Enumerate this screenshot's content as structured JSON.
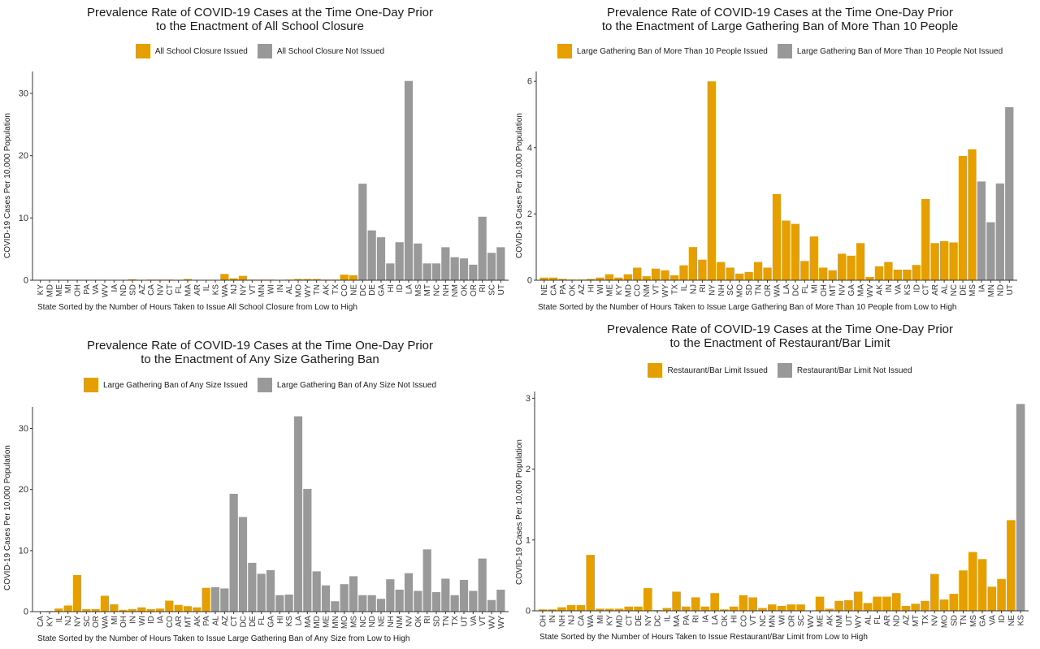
{
  "colors": {
    "issued": "#E69F00",
    "not_issued": "#999999"
  },
  "chart_data": [
    {
      "type": "bar",
      "title_line1": "Prevalence Rate of COVID-19 Cases at the Time One-Day Prior",
      "title_line2": "to the Enactment of All School Closure",
      "xlabel": "State Sorted by the Number of Hours Taken to Issue All School Closure from Low to High",
      "ylabel": "COVID-19 Cases Per 10,000 Population",
      "ylim": [
        0,
        33
      ],
      "yticks": [
        "0",
        "10",
        "20",
        "30"
      ],
      "legend_position": "top",
      "series_names": [
        "All School Closure Issued",
        "All School Closure Not Issued"
      ],
      "categories": [
        "KY",
        "MD",
        "ME",
        "MI",
        "OH",
        "PA",
        "VA",
        "WV",
        "IA",
        "ND",
        "SD",
        "AZ",
        "CA",
        "NV",
        "CT",
        "FL",
        "MA",
        "AR",
        "IL",
        "KS",
        "WA",
        "NJ",
        "NY",
        "VT",
        "MN",
        "WI",
        "IN",
        "AL",
        "MO",
        "WY",
        "TN",
        "AK",
        "TX",
        "CO",
        "NE",
        "DC",
        "DE",
        "GA",
        "HI",
        "ID",
        "LA",
        "MS",
        "MT",
        "NC",
        "NH",
        "NM",
        "OK",
        "OR",
        "RI",
        "SC",
        "UT"
      ],
      "values": [
        0.02,
        0.02,
        0.03,
        0.05,
        0.05,
        0.05,
        0.05,
        0.02,
        0.03,
        0.05,
        0.15,
        0.05,
        0.1,
        0.1,
        0.1,
        0.05,
        0.2,
        0.05,
        0.05,
        0.05,
        1.0,
        0.3,
        0.7,
        0.1,
        0.1,
        0.1,
        0.05,
        0.1,
        0.2,
        0.2,
        0.2,
        0.1,
        0.1,
        0.9,
        0.8,
        15.5,
        8.0,
        6.9,
        2.7,
        6.1,
        32.0,
        5.9,
        2.7,
        2.7,
        5.3,
        3.7,
        3.5,
        2.5,
        10.2,
        4.4,
        5.3
      ],
      "issued": [
        true,
        true,
        true,
        true,
        true,
        true,
        true,
        true,
        true,
        true,
        true,
        true,
        true,
        true,
        true,
        true,
        true,
        true,
        true,
        true,
        true,
        true,
        true,
        true,
        true,
        true,
        true,
        true,
        true,
        true,
        true,
        true,
        true,
        true,
        true,
        false,
        false,
        false,
        false,
        false,
        false,
        false,
        false,
        false,
        false,
        false,
        false,
        false,
        false,
        false,
        false
      ]
    },
    {
      "type": "bar",
      "title_line1": "Prevalence Rate of COVID-19 Cases at the Time One-Day Prior",
      "title_line2": "to the Enactment of Large Gathering Ban of More Than 10 People",
      "xlabel": "State Sorted by the Number of Hours Taken to Issue Large Gathering Ban of More Than 10 People from Low to High",
      "ylabel": "COVID-19 Cases Per 10,000 Population",
      "ylim": [
        0,
        6.2
      ],
      "yticks": [
        "0",
        "2",
        "4",
        "6"
      ],
      "legend_position": "top",
      "series_names": [
        "Large Gathering Ban of More Than 10 People Issued",
        "Large Gathering Ban of More Than 10 People Not Issued"
      ],
      "categories": [
        "NE",
        "CA",
        "PA",
        "OK",
        "AZ",
        "HI",
        "WI",
        "ME",
        "KY",
        "MD",
        "CO",
        "NM",
        "VT",
        "WY",
        "TX",
        "IL",
        "NJ",
        "RI",
        "NY",
        "NH",
        "SC",
        "MO",
        "SD",
        "TN",
        "OR",
        "WA",
        "LA",
        "DC",
        "FL",
        "MI",
        "OH",
        "MT",
        "NV",
        "GA",
        "MA",
        "WV",
        "AK",
        "IN",
        "VA",
        "KS",
        "ID",
        "CT",
        "AR",
        "AL",
        "NC",
        "DE",
        "MS",
        "IA",
        "MN",
        "ND",
        "UT"
      ],
      "values": [
        0.08,
        0.08,
        0.04,
        0.02,
        0.02,
        0.04,
        0.08,
        0.18,
        0.08,
        0.18,
        0.38,
        0.12,
        0.35,
        0.3,
        0.15,
        0.45,
        1.0,
        0.62,
        6.0,
        0.55,
        0.38,
        0.2,
        0.25,
        0.55,
        0.38,
        2.6,
        1.8,
        1.7,
        0.58,
        1.32,
        0.38,
        0.3,
        0.8,
        0.74,
        1.12,
        0.1,
        0.42,
        0.55,
        0.32,
        0.32,
        0.46,
        2.45,
        1.12,
        1.18,
        1.14,
        3.75,
        3.95,
        2.98,
        1.75,
        2.92,
        5.22
      ],
      "issued": [
        true,
        true,
        true,
        true,
        true,
        true,
        true,
        true,
        true,
        true,
        true,
        true,
        true,
        true,
        true,
        true,
        true,
        true,
        true,
        true,
        true,
        true,
        true,
        true,
        true,
        true,
        true,
        true,
        true,
        true,
        true,
        true,
        true,
        true,
        true,
        true,
        true,
        true,
        true,
        true,
        true,
        true,
        true,
        true,
        true,
        true,
        true,
        false,
        false,
        false,
        false
      ]
    },
    {
      "type": "bar",
      "title_line1": "Prevalence Rate of COVID-19 Cases at the Time One-Day Prior",
      "title_line2": "to the Enactment of Any Size Gathering Ban",
      "xlabel": "State Sorted by the Number of Hours Taken to Issue Large Gathering Ban of Any Size from Low to High",
      "ylabel": "COVID-19 Cases Per 10,000 Population",
      "ylim": [
        0,
        33
      ],
      "yticks": [
        "0",
        "10",
        "20",
        "30"
      ],
      "legend_position": "top",
      "series_names": [
        "Large Gathering Ban of Any Size Issued",
        "Large Gathering Ban of Any Size Not Issued"
      ],
      "categories": [
        "CA",
        "KY",
        "IL",
        "NJ",
        "NY",
        "SC",
        "OR",
        "WA",
        "MI",
        "OH",
        "IN",
        "WI",
        "ID",
        "IA",
        "CO",
        "AR",
        "MT",
        "AK",
        "PA",
        "AL",
        "AZ",
        "CT",
        "DC",
        "DE",
        "FL",
        "GA",
        "HI",
        "KS",
        "LA",
        "MA",
        "MD",
        "ME",
        "MN",
        "MO",
        "MS",
        "NC",
        "ND",
        "NE",
        "NH",
        "NM",
        "NV",
        "OK",
        "RI",
        "SD",
        "TN",
        "TX",
        "UT",
        "VA",
        "VT",
        "WV",
        "WY"
      ],
      "values": [
        0.05,
        0.1,
        0.5,
        1.0,
        6.0,
        0.4,
        0.4,
        2.6,
        1.2,
        0.3,
        0.4,
        0.7,
        0.4,
        0.5,
        1.8,
        1.1,
        0.9,
        0.7,
        3.9,
        4.0,
        3.8,
        19.3,
        15.5,
        8.0,
        6.2,
        6.8,
        2.7,
        2.8,
        32.0,
        20.1,
        6.6,
        4.3,
        1.7,
        4.5,
        5.8,
        2.7,
        2.7,
        2.1,
        5.3,
        3.6,
        6.3,
        3.4,
        10.2,
        3.2,
        5.4,
        2.7,
        5.2,
        3.4,
        8.7,
        1.9,
        3.6
      ],
      "issued": [
        true,
        true,
        true,
        true,
        true,
        true,
        true,
        true,
        true,
        true,
        true,
        true,
        true,
        true,
        true,
        true,
        true,
        true,
        true,
        false,
        false,
        false,
        false,
        false,
        false,
        false,
        false,
        false,
        false,
        false,
        false,
        false,
        false,
        false,
        false,
        false,
        false,
        false,
        false,
        false,
        false,
        false,
        false,
        false,
        false,
        false,
        false,
        false,
        false,
        false,
        false
      ]
    },
    {
      "type": "bar",
      "title_line1": "Prevalence Rate of COVID-19 Cases at the Time One-Day Prior",
      "title_line2": "to the Enactment of Restaurant/Bar Limit",
      "xlabel": "State Sorted by the Number of Hours Taken to Issue Restaurant/Bar Limit from Low to High",
      "ylabel": "COVID-19 Cases Per 10,000 Population",
      "ylim": [
        0,
        3.05
      ],
      "yticks": [
        "0",
        "1",
        "2",
        "3"
      ],
      "legend_position": "top",
      "series_names": [
        "Restaurant/Bar Limit Issued",
        "Restaurant/Bar Limit Not Issued"
      ],
      "categories": [
        "OH",
        "IN",
        "NH",
        "NJ",
        "CA",
        "WA",
        "MI",
        "KY",
        "MD",
        "CT",
        "DE",
        "NY",
        "DC",
        "IL",
        "MA",
        "PA",
        "RI",
        "IA",
        "LA",
        "OK",
        "HI",
        "CO",
        "VT",
        "NC",
        "MN",
        "WI",
        "OR",
        "SC",
        "WV",
        "ME",
        "AK",
        "NM",
        "UT",
        "WY",
        "AL",
        "FL",
        "AR",
        "ND",
        "AZ",
        "MT",
        "TX",
        "NV",
        "MO",
        "SD",
        "TN",
        "MS",
        "GA",
        "VA",
        "ID",
        "NE",
        "KS"
      ],
      "values": [
        0.02,
        0.02,
        0.05,
        0.08,
        0.08,
        0.79,
        0.03,
        0.03,
        0.03,
        0.06,
        0.06,
        0.32,
        0.01,
        0.04,
        0.27,
        0.06,
        0.19,
        0.06,
        0.25,
        0.02,
        0.06,
        0.22,
        0.19,
        0.04,
        0.09,
        0.07,
        0.09,
        0.09,
        0.0,
        0.2,
        0.03,
        0.14,
        0.15,
        0.27,
        0.11,
        0.2,
        0.2,
        0.25,
        0.07,
        0.1,
        0.14,
        0.52,
        0.16,
        0.24,
        0.57,
        0.83,
        0.73,
        0.34,
        0.45,
        1.28,
        2.92
      ],
      "issued": [
        true,
        true,
        true,
        true,
        true,
        true,
        true,
        true,
        true,
        true,
        true,
        true,
        true,
        true,
        true,
        true,
        true,
        true,
        true,
        true,
        true,
        true,
        true,
        true,
        true,
        true,
        true,
        true,
        true,
        true,
        true,
        true,
        true,
        true,
        true,
        true,
        true,
        true,
        true,
        true,
        true,
        true,
        true,
        true,
        true,
        true,
        true,
        true,
        true,
        true,
        false
      ]
    }
  ]
}
